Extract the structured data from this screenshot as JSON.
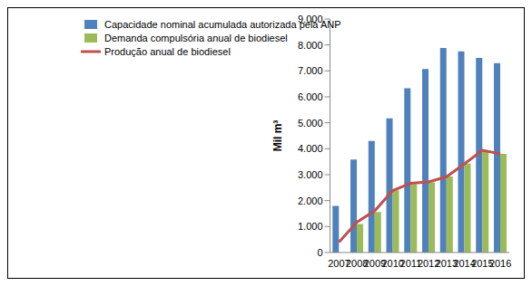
{
  "chart_data": {
    "type": "bar",
    "y_label": "Mil m³",
    "categories": [
      "2007",
      "2008",
      "2009",
      "2010",
      "2011",
      "2012",
      "2013",
      "2014",
      "2015",
      "2016"
    ],
    "series": [
      {
        "name": "Capacidade nominal acumulada autorizada pela ANP",
        "type": "bar",
        "color": "#4f81bd",
        "values": [
          1800,
          3580,
          4300,
          5170,
          6330,
          7070,
          7880,
          7750,
          7500,
          7300
        ]
      },
      {
        "name": "Demanda compulsória anual de biodiesel",
        "type": "bar",
        "color": "#9bbb59",
        "values": [
          null,
          1100,
          1560,
          2400,
          2630,
          2700,
          2930,
          3430,
          3900,
          3800
        ]
      },
      {
        "name": "Produção anual de biodiesel",
        "type": "line",
        "color": "#c0504d",
        "values": [
          400,
          1170,
          1610,
          2390,
          2670,
          2720,
          2920,
          3420,
          3940,
          3800
        ]
      }
    ],
    "ylim": [
      0,
      9000
    ],
    "yticks": [
      0,
      {
        "value": 1000,
        "label": "1.000"
      },
      {
        "value": 2000,
        "label": "2.000"
      },
      {
        "value": 3000,
        "label": "3.000"
      },
      {
        "value": 4000,
        "label": "4.000"
      },
      {
        "value": 5000,
        "label": "5.000"
      },
      {
        "value": 6000,
        "label": "6.000"
      },
      {
        "value": 7000,
        "label": "7.000"
      },
      {
        "value": 8000,
        "label": "8.000"
      },
      {
        "value": 9000,
        "label": "9.000"
      }
    ],
    "grid": false,
    "legend": "top-left"
  }
}
